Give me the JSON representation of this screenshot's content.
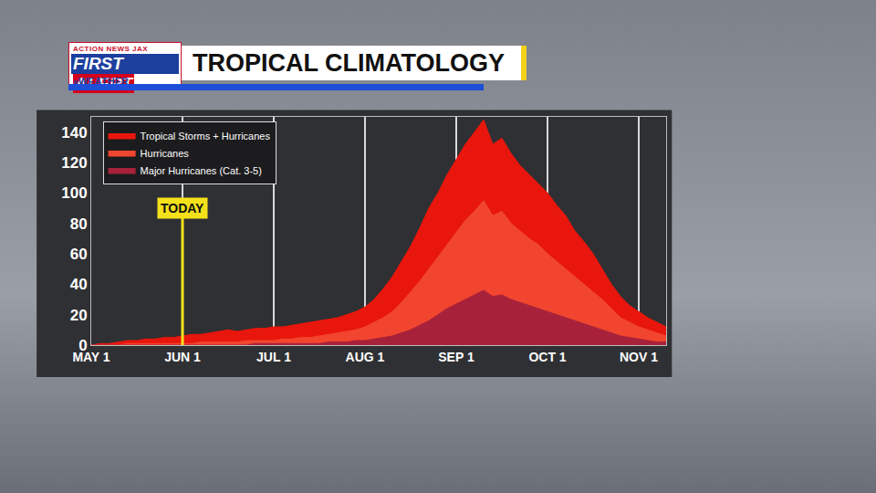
{
  "chart_data": {
    "type": "area",
    "title": "TROPICAL CLIMATOLOGY",
    "logo": [
      "ACTION NEWS JAX",
      "FIRST ALERT",
      "»WEATHER"
    ],
    "categories": [
      "MAY 1",
      null,
      null,
      null,
      null,
      null,
      null,
      null,
      null,
      null,
      "JUN 1",
      null,
      null,
      null,
      null,
      null,
      null,
      null,
      null,
      null,
      "JUL 1",
      null,
      null,
      null,
      null,
      null,
      null,
      null,
      null,
      null,
      "AUG 1",
      null,
      null,
      null,
      null,
      null,
      null,
      null,
      null,
      null,
      "SEP 1",
      null,
      null,
      null,
      null,
      null,
      null,
      null,
      null,
      null,
      "OCT 1",
      null,
      null,
      null,
      null,
      null,
      null,
      null,
      null,
      null,
      "NOV 1",
      null,
      null,
      null
    ],
    "series": [
      {
        "name": "Tropical Storms + Hurricanes",
        "color": "#e8160c",
        "values": [
          0,
          1,
          1,
          2,
          3,
          3,
          4,
          4,
          5,
          5,
          6,
          7,
          7,
          8,
          9,
          10,
          9,
          10,
          11,
          11,
          12,
          12,
          13,
          14,
          15,
          16,
          17,
          18,
          20,
          22,
          25,
          30,
          37,
          45,
          55,
          65,
          77,
          90,
          100,
          112,
          122,
          132,
          140,
          148,
          132,
          136,
          126,
          118,
          112,
          106,
          100,
          92,
          85,
          75,
          68,
          60,
          50,
          40,
          32,
          26,
          22,
          18,
          15,
          12
        ]
      },
      {
        "name": "Hurricanes",
        "color": "#f2452f",
        "values": [
          0,
          0,
          0,
          0,
          1,
          1,
          1,
          1,
          1,
          1,
          1,
          1,
          2,
          2,
          2,
          2,
          2,
          3,
          3,
          3,
          3,
          4,
          4,
          5,
          5,
          6,
          7,
          8,
          9,
          10,
          12,
          15,
          18,
          22,
          28,
          35,
          42,
          50,
          58,
          66,
          74,
          82,
          88,
          95,
          85,
          88,
          80,
          75,
          70,
          66,
          60,
          55,
          50,
          45,
          40,
          35,
          30,
          24,
          18,
          15,
          12,
          10,
          8,
          6
        ]
      },
      {
        "name": "Major Hurricanes (Cat. 3-5)",
        "color": "#a8213a",
        "values": [
          0,
          0,
          0,
          0,
          0,
          0,
          0,
          0,
          0,
          0,
          0,
          0,
          0,
          0,
          0,
          0,
          0,
          0,
          1,
          1,
          1,
          1,
          1,
          1,
          1,
          1,
          2,
          2,
          2,
          3,
          3,
          4,
          5,
          6,
          8,
          10,
          13,
          16,
          20,
          24,
          27,
          30,
          33,
          36,
          32,
          33,
          30,
          28,
          26,
          24,
          22,
          20,
          18,
          16,
          14,
          12,
          10,
          8,
          6,
          5,
          4,
          3,
          2,
          2
        ]
      }
    ],
    "ylim": [
      0,
      150
    ],
    "yticks": [
      0,
      20,
      40,
      60,
      80,
      100,
      120,
      140
    ],
    "grid": "x",
    "legend": "top-left",
    "annotations": [
      {
        "text": "TODAY",
        "x": "JUN 1"
      }
    ]
  }
}
